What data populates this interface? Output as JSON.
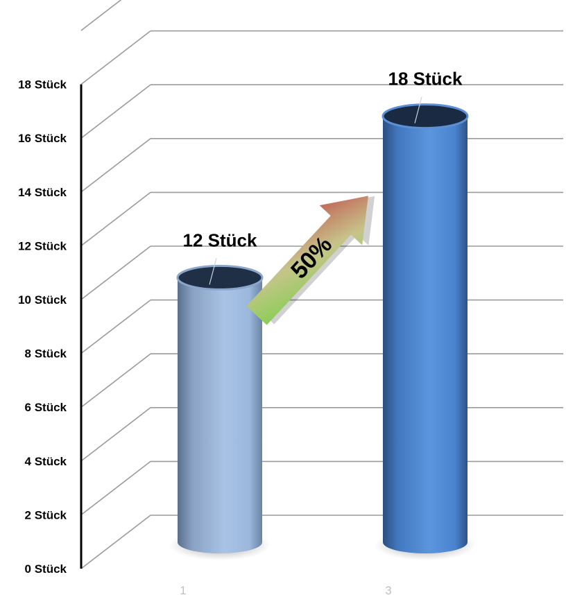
{
  "chart_data": {
    "type": "bar",
    "style": "3d-cylinder",
    "categories": [
      "1",
      "3"
    ],
    "values": [
      12,
      18
    ],
    "data_labels": [
      "12 Stück",
      "18 Stück"
    ],
    "y_ticks": [
      0,
      2,
      4,
      6,
      8,
      10,
      12,
      14,
      16,
      18
    ],
    "y_tick_labels": [
      "0 Stück",
      "2 Stück",
      "4 Stück",
      "6 Stück",
      "8 Stück",
      "10 Stück",
      "12 Stück",
      "14 Stück",
      "16 Stück",
      "18 Stück"
    ],
    "ylim": [
      0,
      20
    ],
    "grid": true,
    "legend": "none",
    "colors": {
      "bar_1": "#8fb0dc",
      "bar_2": "#4f86cf",
      "grid": "#9a9a9a",
      "arrow_start": "#7ed957",
      "arrow_end": "#c0504d"
    },
    "annotation": {
      "text": "50%",
      "kind": "arrow-up-right"
    }
  }
}
